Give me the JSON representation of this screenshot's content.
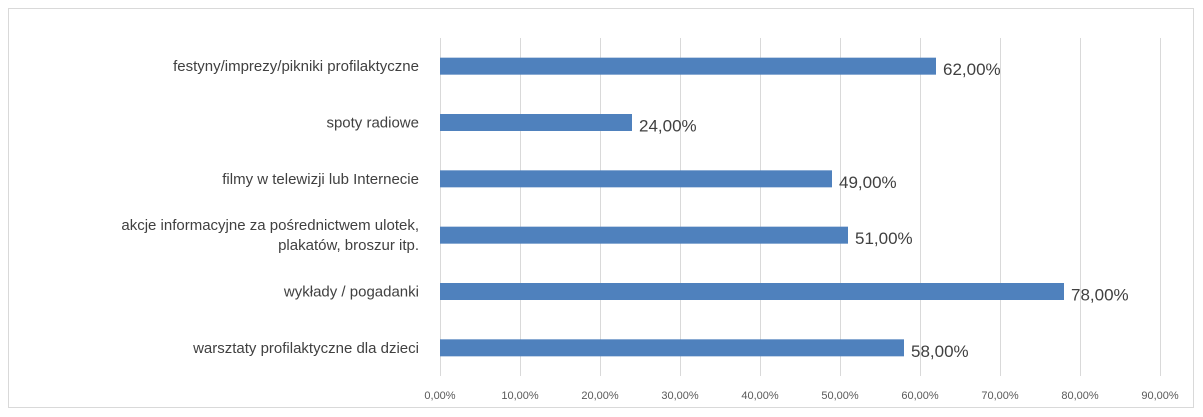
{
  "chart_data": {
    "type": "bar",
    "orientation": "horizontal",
    "categories": [
      "festyny/imprezy/pikniki profilaktyczne",
      "spoty radiowe",
      "filmy w telewizji lub Internecie",
      "akcje informacyjne za pośrednictwem  ulotek, plakatów, broszur itp.",
      "wykłady / pogadanki",
      "warsztaty profilaktyczne dla dzieci"
    ],
    "category_lines": [
      [
        "festyny/imprezy/pikniki profilaktyczne"
      ],
      [
        "spoty radiowe"
      ],
      [
        "filmy w telewizji lub Internecie"
      ],
      [
        "akcje informacyjne za pośrednictwem  ulotek,",
        "plakatów, broszur itp."
      ],
      [
        "wykłady / pogadanki"
      ],
      [
        "warsztaty profilaktyczne dla dzieci"
      ]
    ],
    "values": [
      62,
      24,
      49,
      51,
      78,
      58
    ],
    "data_labels": [
      "62,00%",
      "24,00%",
      "49,00%",
      "51,00%",
      "78,00%",
      "58,00%"
    ],
    "xlim": [
      0,
      90
    ],
    "x_ticks": [
      0,
      10,
      20,
      30,
      40,
      50,
      60,
      70,
      80,
      90
    ],
    "x_tick_labels": [
      "0,00%",
      "10,00%",
      "20,00%",
      "30,00%",
      "40,00%",
      "50,00%",
      "60,00%",
      "70,00%",
      "80,00%",
      "90,00%"
    ],
    "grid": true,
    "legend": "none",
    "bar_color": "#4f81bd",
    "title": "",
    "xlabel": "",
    "ylabel": ""
  }
}
